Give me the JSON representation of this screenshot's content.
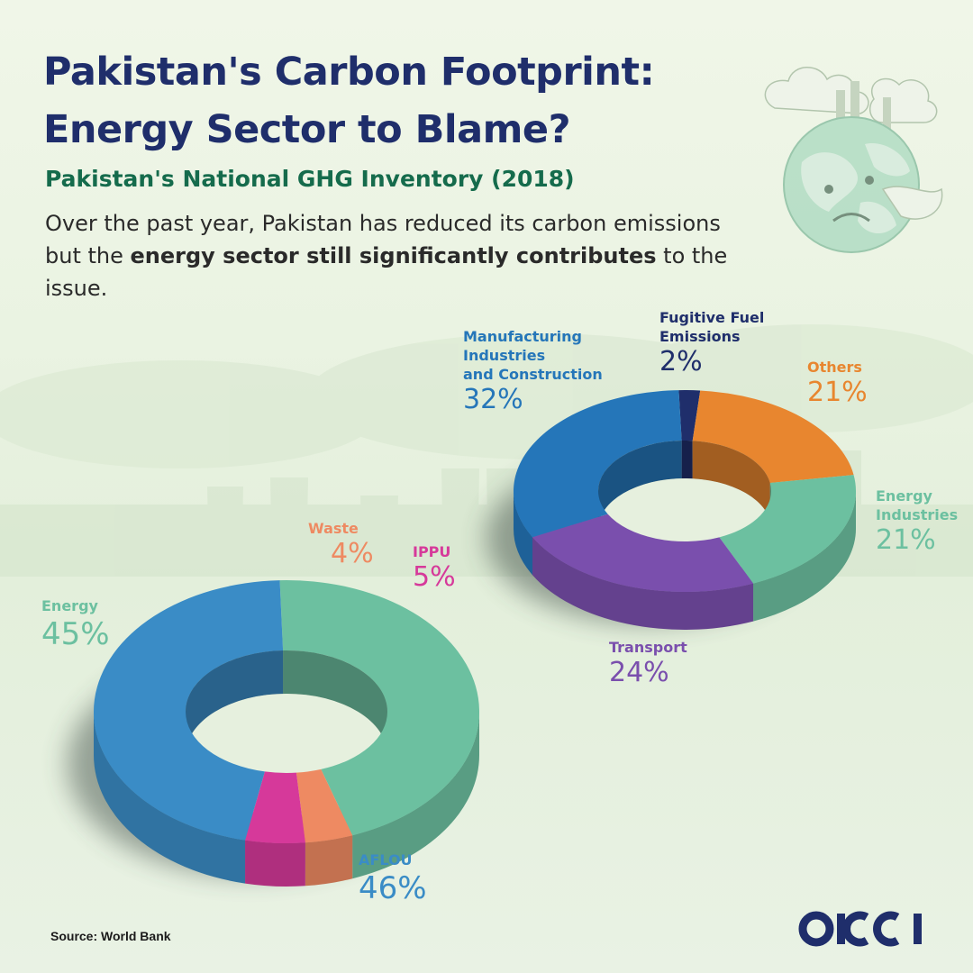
{
  "header": {
    "title_line1": "Pakistan's Carbon Footprint:",
    "title_line2": "Energy Sector to Blame?",
    "subtitle": "Pakistan's National GHG Inventory (2018)",
    "desc_part1": "Over the past year, Pakistan has reduced its carbon emissions but the ",
    "desc_bold": "energy sector still significantly contributes",
    "desc_part2": " to the issue."
  },
  "footer": {
    "source": "Source: World Bank",
    "logo_text": "OICCI"
  },
  "chart_data": [
    {
      "type": "pie",
      "title": "",
      "series": [
        {
          "name": "Energy",
          "pct_label": "45%",
          "value": 45,
          "color": "#6cc0a0"
        },
        {
          "name": "Waste",
          "pct_label": "4%",
          "value": 4,
          "color": "#ee8a62"
        },
        {
          "name": "IPPU",
          "pct_label": "5%",
          "value": 5,
          "color": "#d6399a"
        },
        {
          "name": "AFLOU",
          "pct_label": "46%",
          "value": 46,
          "color": "#3a8cc6"
        }
      ]
    },
    {
      "type": "pie",
      "title": "",
      "series": [
        {
          "name": "Fugitive Fuel\nEmissions",
          "pct_label": "2%",
          "value": 2,
          "color": "#1f2e6b"
        },
        {
          "name": "Others",
          "pct_label": "21%",
          "value": 21,
          "color": "#e8862f"
        },
        {
          "name": "Energy\nIndustries",
          "pct_label": "21%",
          "value": 21,
          "color": "#6cc0a0"
        },
        {
          "name": "Transport",
          "pct_label": "24%",
          "value": 24,
          "color": "#7a4fad"
        },
        {
          "name": "Manufacturing\nIndustries\nand Construction",
          "pct_label": "32%",
          "value": 32,
          "color": "#2576b9"
        }
      ]
    }
  ]
}
